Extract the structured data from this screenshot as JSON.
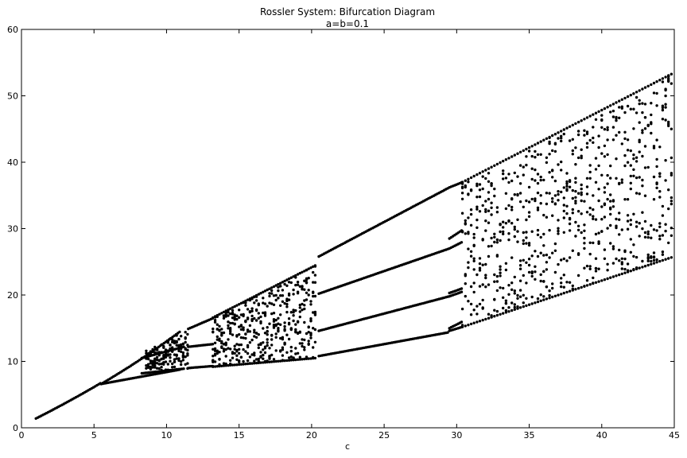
{
  "chart_data": {
    "type": "scatter",
    "title": "Rossler System: Bifurcation Diagram",
    "subtitle": "a=b=0.1",
    "xlabel": "c",
    "ylabel": "",
    "xlim": [
      0,
      45
    ],
    "ylim": [
      0,
      60
    ],
    "xticks": [
      "0",
      "5",
      "10",
      "15",
      "20",
      "25",
      "30",
      "35",
      "40",
      "45"
    ],
    "yticks": [
      "0",
      "10",
      "20",
      "30",
      "40",
      "50",
      "60"
    ],
    "grid": false,
    "marker_color": "#000000",
    "branches": {
      "period1": {
        "c_range": [
          1.0,
          5.5
        ],
        "y_range": [
          1.4,
          6.6
        ]
      },
      "period2_upper": {
        "c_range": [
          5.5,
          11.0
        ],
        "y_range": [
          6.6,
          14.8
        ]
      },
      "period2_lower": {
        "c_range": [
          5.5,
          11.0
        ],
        "y_range": [
          6.6,
          8.8
        ]
      },
      "period3_branches": [
        {
          "c_range": [
            20.5,
            29.5
          ],
          "y_range": [
            26.0,
            36.0
          ]
        },
        {
          "c_range": [
            20.5,
            29.5
          ],
          "y_range": [
            20.2,
            26.8
          ]
        },
        {
          "c_range": [
            20.5,
            29.5
          ],
          "y_range": [
            14.6,
            19.8
          ]
        },
        {
          "c_range": [
            20.5,
            29.5
          ],
          "y_range": [
            10.8,
            14.4
          ]
        }
      ],
      "chaotic_bands": [
        {
          "c_range": [
            8.5,
            11.5
          ],
          "y_min": [
            8.3,
            8.8
          ],
          "y_max": [
            11.5,
            14.8
          ]
        },
        {
          "c_range": [
            13.0,
            20.3
          ],
          "y_min": [
            9.0,
            10.5
          ],
          "y_max": [
            16.5,
            24.5
          ]
        },
        {
          "c_range": [
            29.5,
            45.0
          ],
          "y_min": [
            14.8,
            25.5
          ],
          "y_max": [
            37.0,
            53.5
          ]
        }
      ]
    }
  }
}
